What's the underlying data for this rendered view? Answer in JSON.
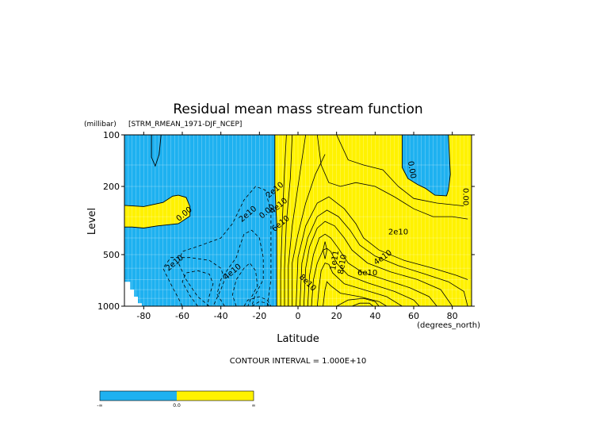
{
  "colors": {
    "negative": "#1eb1f0",
    "positive": "#fff200",
    "missing": "#ffffff",
    "line": "#000000"
  },
  "chart_data": {
    "type": "contour",
    "title": "Residual mean mass stream function",
    "subtitle": "[STRM_RMEAN_1971-DJF_NCEP]",
    "ylabel": "Level",
    "yunits": "(millibar)",
    "xlabel": "Latitude",
    "xunits": "(degrees_north)",
    "xlim": [
      -90,
      90
    ],
    "ylim": [
      1000,
      100
    ],
    "yscale": "log",
    "xticks": [
      -80,
      -60,
      -40,
      -20,
      0,
      20,
      40,
      60,
      80
    ],
    "xtick_labels": [
      "-80",
      "-60",
      "-40",
      "-20",
      "0",
      "20",
      "40",
      "60",
      "80"
    ],
    "yticks": [
      100,
      200,
      500,
      1000
    ],
    "ytick_labels": [
      "100",
      "200",
      "500",
      "1000"
    ],
    "grid": true,
    "contour_interval_text": "CONTOUR INTERVAL = 1.000E+10",
    "contour_interval": 10000000000.0,
    "contour_labels": [
      {
        "text": "0.00",
        "lat": -59,
        "p": 290
      },
      {
        "text": "2e10",
        "lat": -64,
        "p": 560
      },
      {
        "text": "4e10",
        "lat": -34,
        "p": 630
      },
      {
        "text": "2e10",
        "lat": -26,
        "p": 290
      },
      {
        "text": "0.00",
        "lat": -16,
        "p": 280
      },
      {
        "text": "2e10",
        "lat": -12,
        "p": 210
      },
      {
        "text": "4e10",
        "lat": -10,
        "p": 260
      },
      {
        "text": "6e10",
        "lat": -9,
        "p": 330
      },
      {
        "text": "8e10",
        "lat": 5,
        "p": 730
      },
      {
        "text": "1e11",
        "lat": 19,
        "p": 540
      },
      {
        "text": "8e10",
        "lat": 23,
        "p": 570
      },
      {
        "text": "6e10",
        "lat": 36,
        "p": 640
      },
      {
        "text": "4e10",
        "lat": 44,
        "p": 520
      },
      {
        "text": "2e10",
        "lat": 52,
        "p": 370
      },
      {
        "text": "0.00",
        "lat": 59,
        "p": 160
      },
      {
        "text": "0.00",
        "lat": 87,
        "p": 230
      }
    ],
    "colorbar": {
      "labels": [
        "-∞",
        "0.0",
        "∞"
      ]
    }
  }
}
